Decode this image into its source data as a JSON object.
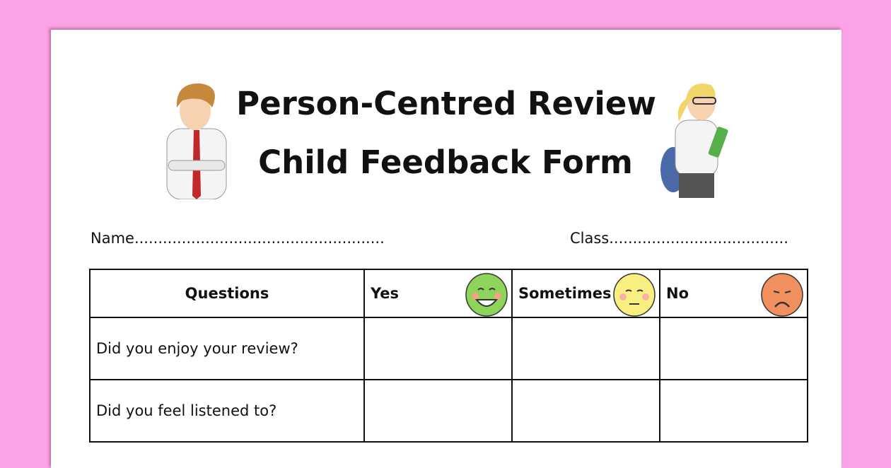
{
  "background_color": "#fba3e6",
  "title_line1": "Person-Centred Review",
  "title_line2": "Child Feedback Form",
  "fields": {
    "name": "Name.....................................................",
    "class": "Class......................................"
  },
  "table": {
    "headers": [
      {
        "label": "Questions"
      },
      {
        "label": "Yes",
        "icon": "happy-face-icon",
        "color": "#8fd45a"
      },
      {
        "label": "Sometimes",
        "icon": "neutral-face-icon",
        "color": "#f8ef80"
      },
      {
        "label": "No",
        "icon": "sad-face-icon",
        "color": "#f0905e"
      }
    ],
    "rows": [
      "Did you enjoy your review?",
      "Did you feel listened to?"
    ]
  }
}
